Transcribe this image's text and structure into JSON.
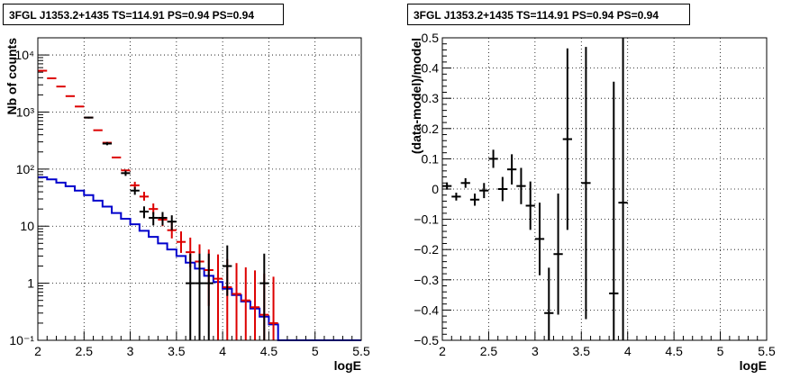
{
  "chart_data": [
    {
      "type": "line",
      "title": "3FGL J1353.2+1435 TS=114.91 PS=0.94 PS=0.94",
      "xlabel": "logE",
      "ylabel": "Nb of counts",
      "xlim": [
        2,
        5.5
      ],
      "ylim": [
        0.1,
        20000
      ],
      "yscale": "log",
      "grid": true,
      "xticks": [
        "2",
        "2.5",
        "3",
        "3.5",
        "4",
        "4.5",
        "5",
        "5.5"
      ],
      "yticks": [
        "10⁻¹",
        "1",
        "10",
        "10²",
        "10³",
        "10⁴"
      ],
      "series": [
        {
          "color": "#0000cc",
          "style": "step",
          "x": [
            2.05,
            2.15,
            2.25,
            2.35,
            2.45,
            2.55,
            2.65,
            2.75,
            2.85,
            2.95,
            3.05,
            3.15,
            3.25,
            3.35,
            3.45,
            3.55,
            3.65,
            3.75,
            3.85,
            3.95,
            4.05,
            4.15,
            4.25,
            4.35,
            4.45,
            4.55,
            4.65,
            4.75,
            4.85,
            4.95,
            5.05,
            5.15,
            5.25,
            5.35,
            5.45
          ],
          "values": [
            72,
            66,
            58,
            50,
            42,
            35,
            28,
            22,
            17,
            13.5,
            10.8,
            8.3,
            6.5,
            5.0,
            3.9,
            3.0,
            2.3,
            1.8,
            1.35,
            1.05,
            0.8,
            0.62,
            0.48,
            0.36,
            0.26,
            0.19,
            0.1,
            0.1,
            0.1,
            0.1,
            0.1,
            0.1,
            0.1,
            0.1,
            0.1
          ]
        },
        {
          "color": "#dd0000",
          "style": "errorbar",
          "x": [
            2.05,
            2.15,
            2.25,
            2.35,
            2.45,
            2.55,
            2.65,
            2.75,
            2.85,
            2.95,
            3.05,
            3.15,
            3.25,
            3.35,
            3.45,
            3.55,
            3.65,
            3.75,
            3.85,
            3.95,
            4.05,
            4.15,
            4.25,
            4.35,
            4.45,
            4.55
          ],
          "values": [
            5300,
            3900,
            2800,
            1900,
            1250,
            800,
            480,
            290,
            160,
            95,
            52,
            33,
            20,
            13,
            8.5,
            5.3,
            3.5,
            2.4,
            1.7,
            1.2,
            0.85,
            0.65,
            0.5,
            0.38,
            0.28,
            0.2
          ],
          "err_low": [
            0,
            0,
            0,
            0,
            0,
            0,
            0,
            0,
            0,
            0,
            7,
            5,
            4,
            3,
            2.4,
            1.9,
            1.6,
            1.5,
            1.3,
            1.1,
            0.85,
            0.65,
            0.5,
            0.38,
            0.28,
            0.2
          ],
          "err_high": [
            0,
            0,
            0,
            0,
            0,
            0,
            0,
            0,
            0,
            0,
            8,
            7,
            5,
            4,
            3.5,
            2.8,
            2.8,
            2.4,
            2.2,
            2.0,
            1.8,
            1.6,
            1.4,
            1.3,
            1.2,
            1.1
          ]
        },
        {
          "color": "#000000",
          "style": "errorbar",
          "x": [
            2.55,
            2.75,
            2.95,
            3.05,
            3.15,
            3.25,
            3.35,
            3.45,
            3.65,
            3.75,
            3.85,
            4.05,
            4.45
          ],
          "values": [
            800,
            280,
            85,
            42,
            18,
            14,
            14,
            12,
            1,
            1,
            1,
            2,
            1
          ],
          "err_low": [
            30,
            18,
            9,
            6.5,
            4.2,
            3.7,
            3.7,
            3.5,
            0.9,
            0.9,
            0.9,
            1.4,
            0.9
          ],
          "err_high": [
            30,
            18,
            9,
            6.5,
            4.2,
            3.7,
            3.7,
            3.5,
            2.3,
            2.3,
            2.3,
            2.6,
            2.3
          ]
        }
      ]
    },
    {
      "type": "scatter",
      "title": "3FGL J1353.2+1435 TS=114.91 PS=0.94 PS=0.94",
      "xlabel": "logE",
      "ylabel": "(data-model)/model",
      "xlim": [
        2,
        5.5
      ],
      "ylim": [
        -0.5,
        0.5
      ],
      "grid": true,
      "xticks": [
        "2",
        "2.5",
        "3",
        "3.5",
        "4",
        "4.5",
        "5",
        "5.5"
      ],
      "yticks": [
        "−0.5",
        "−0.4",
        "−0.3",
        "−0.2",
        "−0.1",
        "0",
        "0.1",
        "0.2",
        "0.3",
        "0.4",
        "0.5"
      ],
      "series": [
        {
          "color": "#000000",
          "style": "errorbar",
          "x": [
            2.05,
            2.15,
            2.25,
            2.35,
            2.45,
            2.55,
            2.65,
            2.75,
            2.85,
            2.95,
            3.05,
            3.15,
            3.25,
            3.35,
            3.55,
            3.85,
            3.95
          ],
          "values": [
            0.01,
            -0.025,
            0.02,
            -0.035,
            -0.005,
            0.1,
            0.0,
            0.065,
            0.01,
            -0.055,
            -0.165,
            -0.41,
            -0.215,
            0.165,
            0.02,
            -0.345,
            -0.045
          ],
          "err_low": [
            0.012,
            0.013,
            0.016,
            0.02,
            0.025,
            0.03,
            0.04,
            0.05,
            0.06,
            0.08,
            0.12,
            0.15,
            0.2,
            0.3,
            0.45,
            0.6,
            0.7
          ],
          "err_high": [
            0.012,
            0.013,
            0.016,
            0.02,
            0.025,
            0.03,
            0.04,
            0.05,
            0.06,
            0.08,
            0.12,
            0.15,
            0.2,
            0.3,
            0.45,
            0.7,
            0.7
          ]
        }
      ]
    }
  ]
}
